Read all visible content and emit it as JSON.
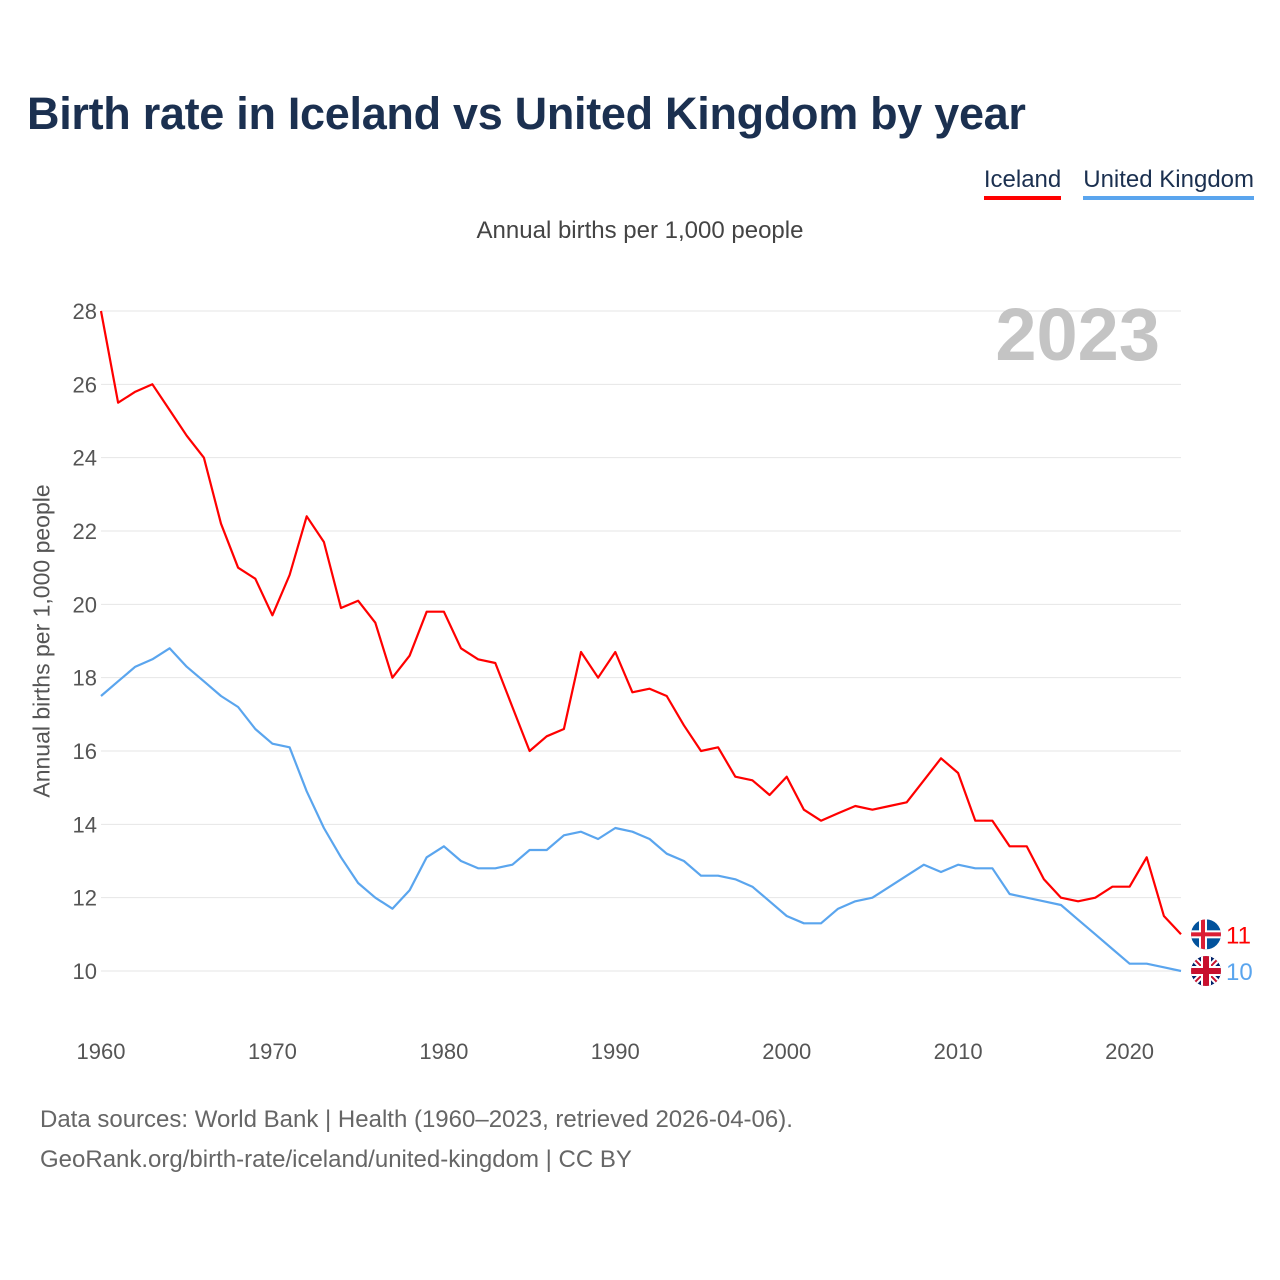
{
  "chart_data": {
    "type": "line",
    "title": "Birth rate in Iceland vs United Kingdom by year",
    "subtitle": "Annual births per 1,000 people",
    "xlabel": "",
    "ylabel": "Annual births per 1,000 people",
    "xlim": [
      1960,
      2023
    ],
    "ylim": [
      10,
      28
    ],
    "x_ticks": [
      1960,
      1970,
      1980,
      1990,
      2000,
      2010,
      2020
    ],
    "y_ticks": [
      10,
      12,
      14,
      16,
      18,
      20,
      22,
      24,
      26,
      28
    ],
    "grid": true,
    "legend_position": "top-right",
    "current_year_label": "2023",
    "x_start": 1960,
    "series": [
      {
        "name": "Iceland",
        "color": "#ff0000",
        "end_label": "11",
        "values": [
          28.0,
          25.5,
          25.8,
          26.0,
          25.3,
          24.6,
          24.0,
          22.2,
          21.0,
          20.7,
          19.7,
          20.8,
          22.4,
          21.7,
          19.9,
          20.1,
          19.5,
          18.0,
          18.6,
          19.8,
          19.8,
          18.8,
          18.5,
          18.4,
          17.2,
          16.0,
          16.4,
          16.6,
          18.7,
          18.0,
          18.7,
          17.6,
          17.7,
          17.5,
          16.7,
          16.0,
          16.1,
          15.3,
          15.2,
          14.8,
          15.3,
          14.4,
          14.1,
          14.3,
          14.5,
          14.4,
          14.5,
          14.6,
          15.2,
          15.8,
          15.4,
          14.1,
          14.1,
          13.4,
          13.4,
          12.5,
          12.0,
          11.9,
          12.0,
          12.3,
          12.3,
          13.1,
          11.5,
          11.0
        ]
      },
      {
        "name": "United Kingdom",
        "color": "#5aa5ee",
        "end_label": "10",
        "values": [
          17.5,
          17.9,
          18.3,
          18.5,
          18.8,
          18.3,
          17.9,
          17.5,
          17.2,
          16.6,
          16.2,
          16.1,
          14.9,
          13.9,
          13.1,
          12.4,
          12.0,
          11.7,
          12.2,
          13.1,
          13.4,
          13.0,
          12.8,
          12.8,
          12.9,
          13.3,
          13.3,
          13.7,
          13.8,
          13.6,
          13.9,
          13.8,
          13.6,
          13.2,
          13.0,
          12.6,
          12.6,
          12.5,
          12.3,
          11.9,
          11.5,
          11.3,
          11.3,
          11.7,
          11.9,
          12.0,
          12.3,
          12.6,
          12.9,
          12.7,
          12.9,
          12.8,
          12.8,
          12.1,
          12.0,
          11.9,
          11.8,
          11.4,
          11.0,
          10.6,
          10.2,
          10.2,
          10.1,
          10.0
        ]
      }
    ]
  },
  "footer": {
    "sources": "Data sources: World Bank | Health (1960–2023, retrieved 2026-04-06).",
    "attribution": "GeoRank.org/birth-rate/iceland/united-kingdom | CC BY"
  }
}
